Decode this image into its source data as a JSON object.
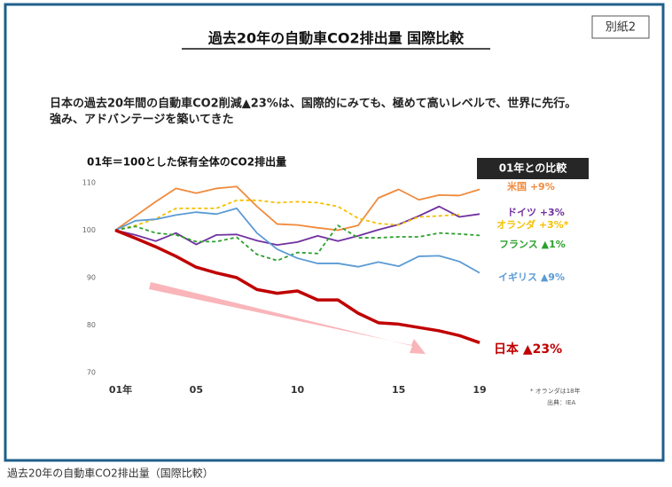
{
  "sheet_label": "別紙2",
  "title": "過去20年の自動車CO2排出量 国際比較",
  "lead": [
    "日本の過去20年間の自動車CO2削減▲23%は、国際的にみても、極めて高いレベルで、世界に先行。",
    "強み、アドバンテージを築いてきた"
  ],
  "caption": "過去20年の自動車CO2排出量（国際比較）",
  "chart_data": {
    "type": "line",
    "title": "01年＝100とした保有全体のCO2排出量",
    "legend_title": "01年との比較",
    "notes": [
      "* オランダは18年",
      "出典：IEA"
    ],
    "x": [
      1,
      2,
      3,
      4,
      5,
      6,
      7,
      8,
      9,
      10,
      11,
      12,
      13,
      14,
      15,
      16,
      17,
      18,
      19
    ],
    "xlim": [
      1,
      19
    ],
    "xticks": [
      {
        "value": 1,
        "label": "01年"
      },
      {
        "value": 5,
        "label": "05"
      },
      10,
      15,
      19
    ],
    "ylim": [
      70,
      110
    ],
    "yticks": [
      70,
      80,
      90,
      100,
      110
    ],
    "series": [
      {
        "name": "米国 +9%",
        "color": "#f08a3c",
        "values": [
          100,
          103,
          106,
          108.8,
          107.8,
          108.8,
          109.2,
          105,
          101.3,
          101.1,
          100.5,
          100,
          101,
          106.8,
          108.6,
          106.4,
          107.4,
          107.3,
          108.6
        ]
      },
      {
        "name": "ドイツ +3%",
        "color": "#7030a0",
        "values": [
          100,
          99,
          97.7,
          99.4,
          97,
          99,
          99.1,
          97.8,
          96.9,
          97.5,
          98.8,
          97.7,
          98.8,
          100.1,
          101.2,
          103,
          105,
          102.8,
          103.4
        ]
      },
      {
        "name": "オランダ +3%*",
        "color": "#f5c000",
        "dashed": true,
        "values": [
          100,
          101,
          102.4,
          104.6,
          104.6,
          104.6,
          106.3,
          106.3,
          105.8,
          106,
          105.8,
          105,
          102.5,
          101.4,
          101.1,
          102.8,
          103,
          103.3,
          null
        ]
      },
      {
        "name": "フランス ▲1%",
        "color": "#2ca02c",
        "dashed": true,
        "values": [
          100,
          100.8,
          99.4,
          99,
          97.6,
          97.6,
          98.5,
          94.9,
          93.6,
          95.3,
          95.1,
          101,
          98.4,
          98.4,
          98.6,
          98.6,
          99.4,
          99.2,
          98.9
        ]
      },
      {
        "name": "イギリス ▲9%",
        "color": "#5b9bd5",
        "values": [
          100,
          102,
          102.3,
          103.2,
          103.8,
          103.4,
          104.6,
          99.4,
          96,
          94.1,
          93,
          93,
          92.3,
          93.3,
          92.4,
          94.5,
          94.6,
          93.4,
          91
        ]
      },
      {
        "name": "日本 ▲23%",
        "color": "#c00000",
        "bold": true,
        "values": [
          100,
          98.3,
          96.5,
          94.5,
          92.2,
          91,
          90,
          87.5,
          86.7,
          87.2,
          85.3,
          85.3,
          82.5,
          80.5,
          80.2,
          79.5,
          78.8,
          77.8,
          76.3
        ]
      }
    ]
  }
}
